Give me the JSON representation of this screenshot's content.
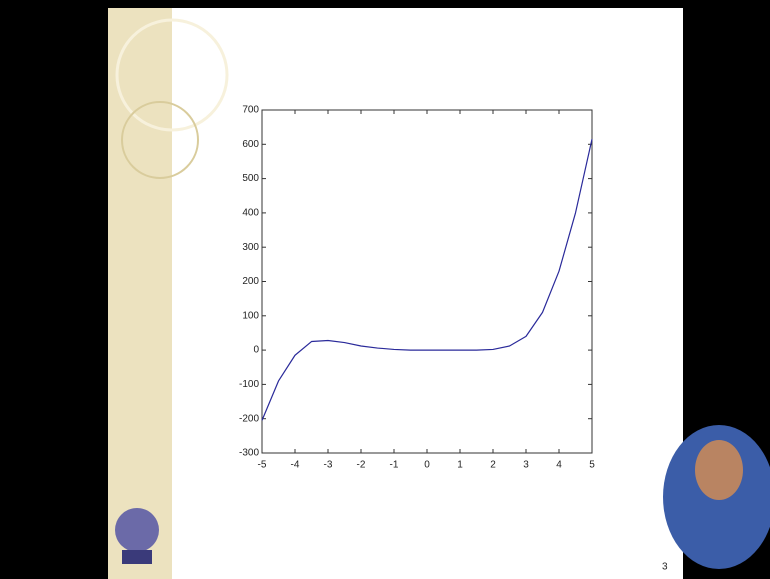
{
  "chart_data": {
    "type": "line",
    "x": [
      -5,
      -4.5,
      -4,
      -3.5,
      -3,
      -2.5,
      -2,
      -1.5,
      -1,
      -0.5,
      0,
      0.5,
      1,
      1.5,
      2,
      2.5,
      3,
      3.5,
      4,
      4.5,
      5
    ],
    "values": [
      -205,
      -90,
      -15,
      25,
      28,
      22,
      12,
      6,
      2,
      0,
      0,
      0,
      0,
      0,
      2,
      12,
      40,
      110,
      230,
      400,
      615
    ],
    "color": "#2a2a9a",
    "xlim": [
      -5,
      5
    ],
    "ylim": [
      -300,
      700
    ],
    "xticks": [
      -5,
      -4,
      -3,
      -2,
      -1,
      0,
      1,
      2,
      3,
      4,
      5
    ],
    "yticks": [
      -300,
      -200,
      -100,
      0,
      100,
      200,
      300,
      400,
      500,
      600,
      700
    ]
  },
  "slide": {
    "page_number": "3"
  }
}
